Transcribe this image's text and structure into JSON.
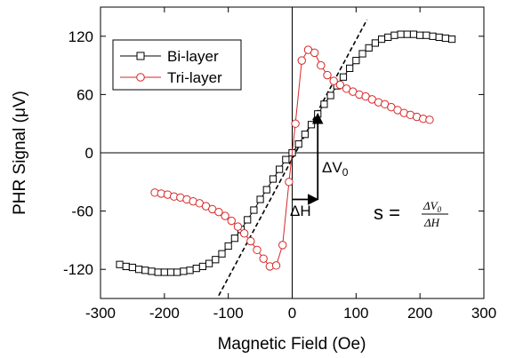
{
  "chart_data": {
    "type": "scatter",
    "title": "",
    "xlabel": "Magnetic Field (Oe)",
    "ylabel": "PHR Signal (μV)",
    "xlim": [
      -300,
      300
    ],
    "ylim": [
      -150,
      150
    ],
    "xticks": [
      -300,
      -200,
      -100,
      0,
      100,
      200,
      300
    ],
    "yticks": [
      -120,
      -60,
      0,
      60,
      120
    ],
    "xtick_labels": [
      "-300",
      "-200",
      "-100",
      "0",
      "100",
      "200",
      "300"
    ],
    "ytick_labels": [
      "-120",
      "-60",
      "0",
      "60",
      "120"
    ],
    "legend_position": "top-left",
    "series": [
      {
        "name": "Bi-layer",
        "marker": "square",
        "color": "#000000",
        "x": [
          -270,
          -260,
          -250,
          -240,
          -230,
          -220,
          -210,
          -200,
          -190,
          -180,
          -170,
          -160,
          -150,
          -140,
          -130,
          -120,
          -110,
          -100,
          -90,
          -80,
          -70,
          -60,
          -50,
          -40,
          -30,
          -20,
          -10,
          0,
          10,
          20,
          30,
          40,
          50,
          60,
          70,
          80,
          90,
          100,
          110,
          120,
          130,
          140,
          150,
          160,
          170,
          180,
          190,
          200,
          210,
          220,
          230,
          240,
          250
        ],
        "y": [
          -115,
          -117,
          -118,
          -120,
          -121,
          -122,
          -123,
          -123,
          -123,
          -123,
          -122,
          -121,
          -119,
          -117,
          -114,
          -110,
          -104,
          -96,
          -88,
          -79,
          -69,
          -59,
          -48,
          -38,
          -27,
          -17,
          -7,
          0,
          9,
          19,
          29,
          40,
          50,
          59,
          69,
          78,
          87,
          95,
          102,
          108,
          113,
          117,
          119,
          121,
          122,
          122,
          122,
          121,
          121,
          120,
          119,
          118,
          117
        ]
      },
      {
        "name": "Tri-layer",
        "marker": "circle",
        "color": "#d62728",
        "x": [
          -215,
          -205,
          -195,
          -185,
          -175,
          -165,
          -155,
          -145,
          -135,
          -125,
          -115,
          -105,
          -95,
          -85,
          -75,
          -65,
          -55,
          -45,
          -35,
          -25,
          -15,
          -5,
          5,
          15,
          25,
          35,
          45,
          55,
          65,
          75,
          85,
          95,
          105,
          115,
          125,
          135,
          145,
          155,
          165,
          175,
          185,
          195,
          205,
          215
        ],
        "y": [
          -41,
          -42,
          -43,
          -45,
          -46,
          -48,
          -50,
          -52,
          -55,
          -58,
          -61,
          -65,
          -70,
          -76,
          -83,
          -91,
          -100,
          -109,
          -117,
          -116,
          -95,
          -30,
          30,
          95,
          106,
          103,
          90,
          80,
          74,
          70,
          66,
          63,
          60,
          58,
          55,
          52,
          50,
          47,
          44,
          41,
          39,
          37,
          35,
          34
        ]
      }
    ],
    "annotations": {
      "delta_v": "ΔV",
      "delta_v_sub": "0",
      "delta_h": "ΔH",
      "formula_lhs": "s =",
      "formula_num": "ΔV",
      "formula_num_sub": "0",
      "formula_den": "ΔH",
      "tangent_line": {
        "x1": -115,
        "y1": -147,
        "x2": 117,
        "y2": 137
      },
      "delta_h_arrow": {
        "x_start": 0,
        "x_end": 40,
        "y": -48
      },
      "delta_v_arrow": {
        "x": 40,
        "y_start": -48,
        "y_end": 40
      }
    }
  }
}
